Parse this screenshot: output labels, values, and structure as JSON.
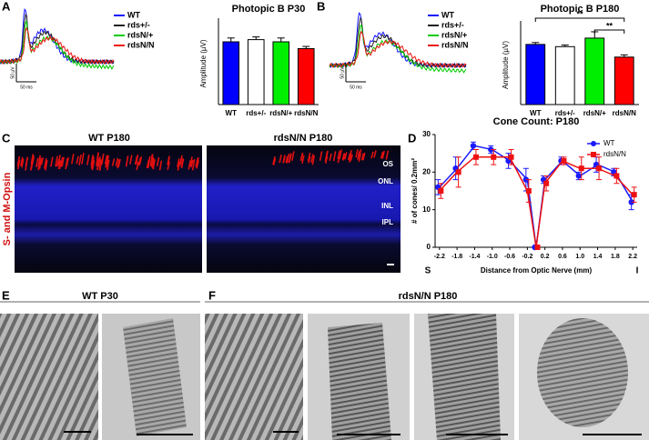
{
  "panel_labels": [
    "A",
    "B",
    "C",
    "D",
    "E",
    "F"
  ],
  "traces": [
    {
      "legend": [
        {
          "name": "WT",
          "color": "#1010ff"
        },
        {
          "name": "rds+/-",
          "color": "#202020"
        },
        {
          "name": "rdsN/+",
          "color": "#00cc00"
        },
        {
          "name": "rdsN/N",
          "color": "#ee1111"
        }
      ],
      "scale_y": "50 µV",
      "scale_x": "50 ms"
    },
    {
      "legend": [
        {
          "name": "WT",
          "color": "#1010ff"
        },
        {
          "name": "rds+/-",
          "color": "#202020"
        },
        {
          "name": "rdsN/+",
          "color": "#00cc00"
        },
        {
          "name": "rdsN/N",
          "color": "#ee1111"
        }
      ],
      "scale_y": "50 µV",
      "scale_x": "50 ms"
    }
  ],
  "chart_data": [
    {
      "type": "bar",
      "title": "Photopic B P30",
      "y_label": "Amplitude (µV)",
      "categories": [
        "WT",
        "rds+/-",
        "rdsN/+",
        "rdsN/N"
      ],
      "values": [
        230,
        238,
        230,
        205
      ],
      "errors": [
        14,
        10,
        14,
        8
      ],
      "colors": [
        "#0000ff",
        "#ffffff",
        "#00ee00",
        "#ff0000"
      ],
      "ylim": [
        0,
        300
      ]
    },
    {
      "type": "bar",
      "title": "Photopic B P180",
      "y_label": "Amplitude (µV)",
      "categories": [
        "WT",
        "rds+/-",
        "rdsN/+",
        "rdsN/N"
      ],
      "values": [
        190,
        183,
        210,
        150
      ],
      "errors": [
        6,
        5,
        20,
        7
      ],
      "colors": [
        "#0000ff",
        "#ffffff",
        "#00ee00",
        "#ff0000"
      ],
      "ylim": [
        0,
        250
      ],
      "annotations": [
        "**",
        "**"
      ]
    },
    {
      "type": "line",
      "title": "Cone Count: P180",
      "x_label": "Distance from Optic Nerve (mm)",
      "y_label": "# of cones/ 0.2mm²",
      "x": [
        -2.2,
        -1.8,
        -1.4,
        -1.0,
        -0.6,
        -0.2,
        0,
        0.2,
        0.6,
        1.0,
        1.4,
        1.8,
        2.2
      ],
      "series": [
        {
          "name": "WT",
          "color": "#1a1aff",
          "marker": "circle",
          "values": [
            16,
            21,
            27,
            26,
            23,
            18,
            0,
            18,
            23,
            19,
            22,
            20,
            12
          ],
          "errors": [
            2,
            3,
            1,
            1,
            2,
            3,
            0,
            1,
            1,
            1,
            2,
            1,
            2
          ]
        },
        {
          "name": "rdsN/N",
          "color": "#ee1111",
          "marker": "square",
          "values": [
            15,
            20,
            24,
            24,
            24,
            15,
            0,
            17,
            23,
            21,
            21,
            19,
            14
          ],
          "errors": [
            2,
            4,
            2,
            2,
            2,
            3,
            0,
            2,
            1,
            3,
            3,
            2,
            2
          ]
        }
      ],
      "xlim": [
        -2.3,
        2.3
      ],
      "ylim": [
        0,
        30
      ],
      "xticks": [
        -2.2,
        -1.8,
        -1.4,
        {
          "value": -1.0,
          "label": "-1.0"
        },
        -0.6,
        -0.2,
        0.2,
        0.6,
        {
          "value": 1.0,
          "label": "1.0"
        },
        1.4,
        1.8,
        2.2
      ],
      "yticks": [
        0,
        10,
        20,
        30
      ],
      "annotations": [
        "S",
        "I"
      ]
    }
  ],
  "micrographs": {
    "c_titles": [
      "WT P180",
      "rdsN/N P180"
    ],
    "c_side_label": "S- and M-Opsin",
    "c_layers": [
      "OS",
      "ONL",
      "INL",
      "IPL"
    ],
    "e_title": "WT P30",
    "f_title": "rdsN/N P180"
  }
}
